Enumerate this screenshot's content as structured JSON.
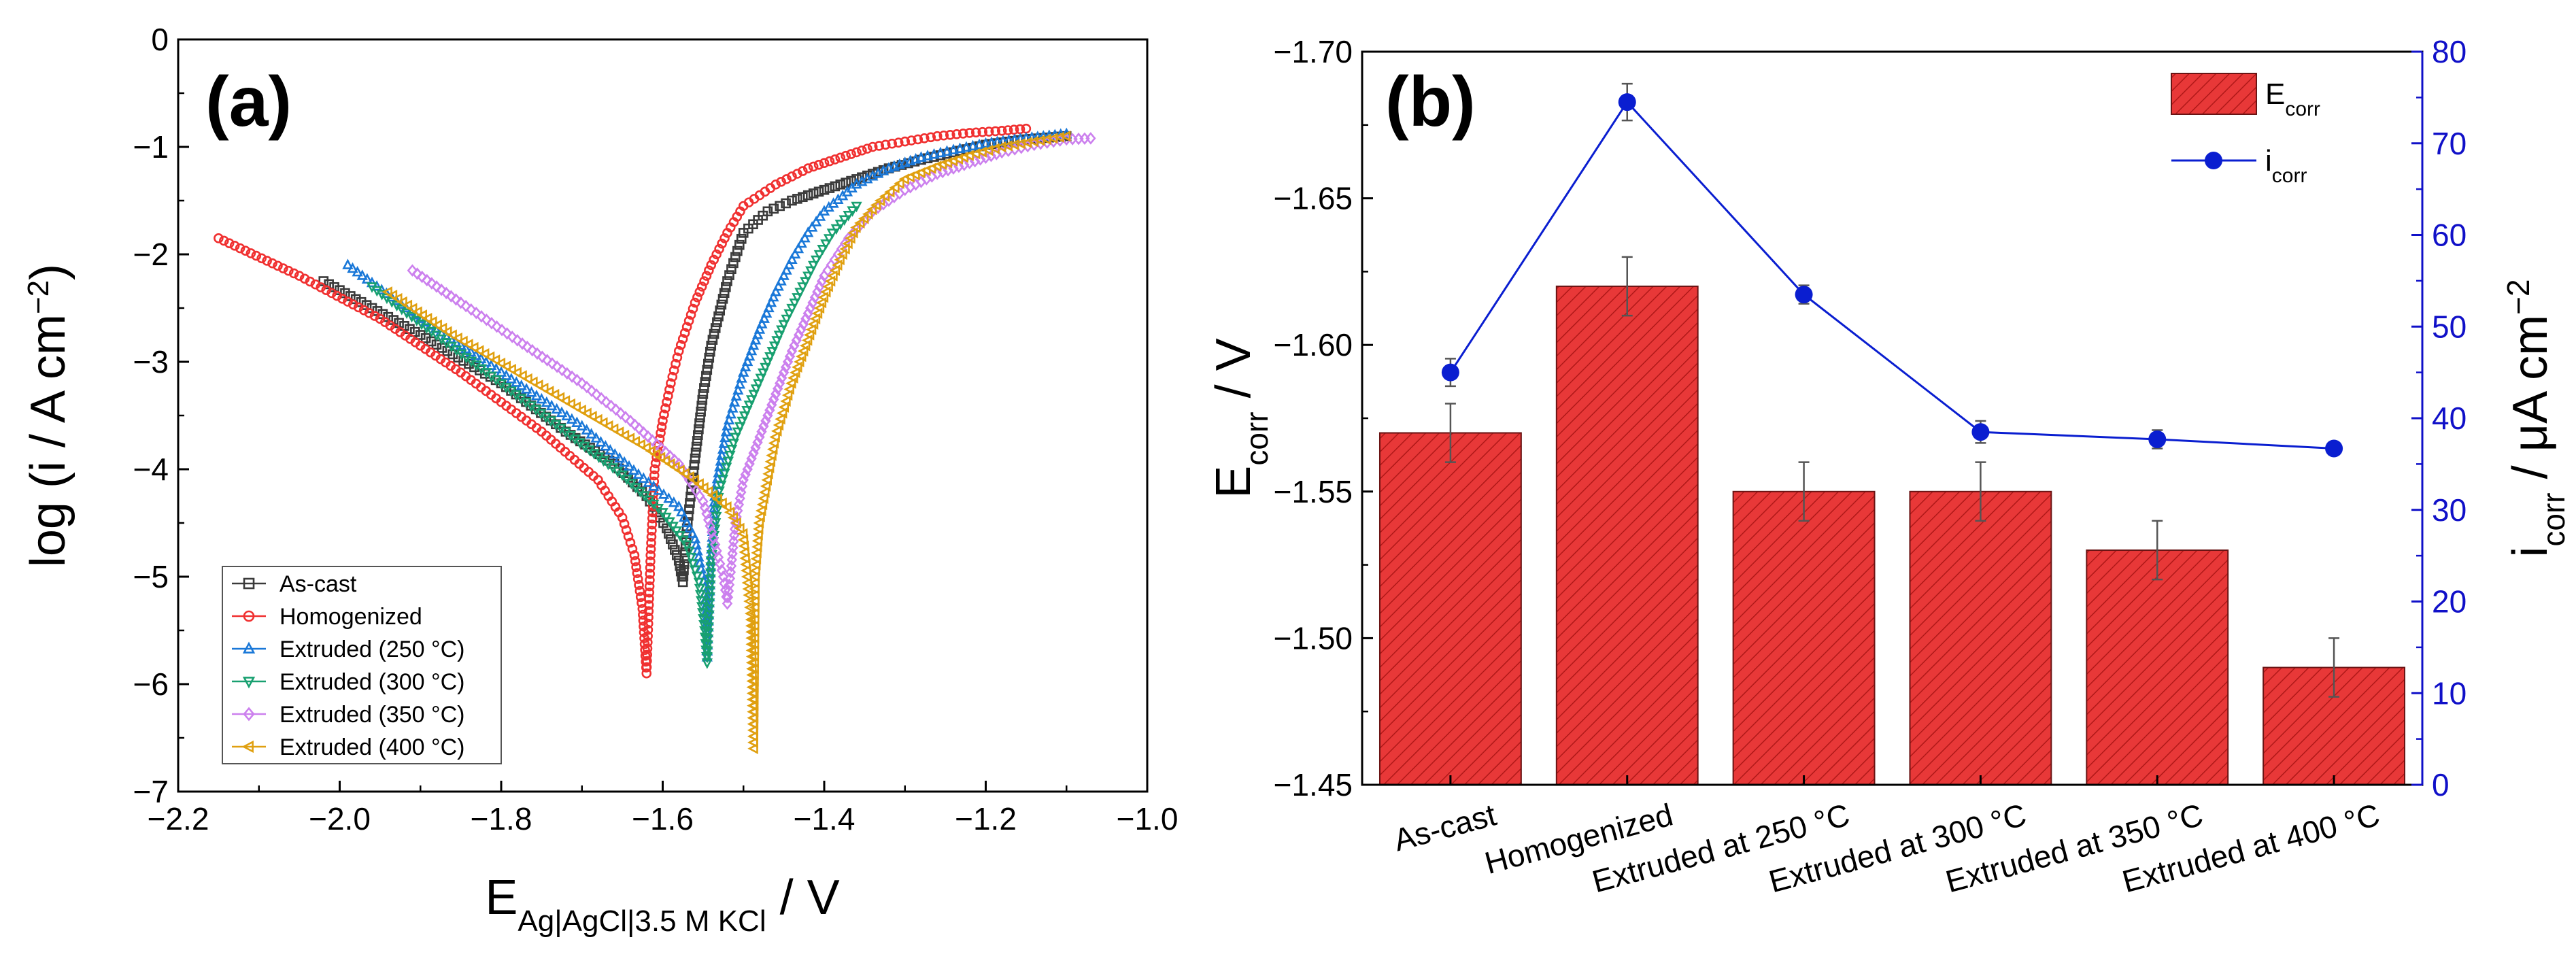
{
  "chart_data": [
    {
      "type": "line",
      "panel_label": "(a)",
      "title": "",
      "xlabel": {
        "main": "E",
        "sub": "Ag|AgCl|3.5 M KCl",
        "rest": " / V"
      },
      "ylabel": {
        "pre": "log (i / A cm",
        "sup": "−2",
        "post": ")"
      },
      "xlim": [
        -2.2,
        -1.0
      ],
      "ylim": [
        -7,
        0
      ],
      "xticks": [
        -2.2,
        -2.0,
        -1.8,
        -1.6,
        -1.4,
        -1.2,
        -1.0
      ],
      "xtick_labels": [
        "−2.2",
        "−2.0",
        "−1.8",
        "−1.6",
        "−1.4",
        "−1.2",
        "−1.0"
      ],
      "yticks": [
        0,
        -1,
        -2,
        -3,
        -4,
        -5,
        -6,
        -7
      ],
      "ytick_labels": [
        "0",
        "−1",
        "−2",
        "−3",
        "−4",
        "−5",
        "−6",
        "−7"
      ],
      "legend_position": "bottom-left",
      "series": [
        {
          "name": "As-cast",
          "color": "#3a3a3a",
          "marker": "square",
          "x": [
            -2.02,
            -1.9,
            -1.8,
            -1.72,
            -1.66,
            -1.62,
            -1.595,
            -1.58,
            -1.575,
            -1.57,
            -1.56,
            -1.55,
            -1.54,
            -1.52,
            -1.5,
            -1.47,
            -1.44,
            -1.4,
            -1.36,
            -1.32,
            -1.28,
            -1.24,
            -1.2,
            -1.15,
            -1.1
          ],
          "y": [
            -2.25,
            -2.75,
            -3.2,
            -3.65,
            -3.95,
            -4.25,
            -4.55,
            -4.85,
            -5.05,
            -4.55,
            -3.9,
            -3.3,
            -2.85,
            -2.25,
            -1.8,
            -1.6,
            -1.5,
            -1.4,
            -1.3,
            -1.2,
            -1.12,
            -1.05,
            -0.98,
            -0.93,
            -0.9
          ]
        },
        {
          "name": "Homogenized",
          "color": "#f03030",
          "marker": "circle",
          "x": [
            -2.15,
            -2.05,
            -1.95,
            -1.85,
            -1.75,
            -1.68,
            -1.65,
            -1.635,
            -1.625,
            -1.62,
            -1.615,
            -1.61,
            -1.6,
            -1.59,
            -1.58,
            -1.56,
            -1.54,
            -1.52,
            -1.5,
            -1.46,
            -1.42,
            -1.38,
            -1.34,
            -1.3,
            -1.26,
            -1.22,
            -1.18,
            -1.15
          ],
          "y": [
            -1.85,
            -2.2,
            -2.6,
            -3.1,
            -3.65,
            -4.1,
            -4.45,
            -4.8,
            -5.3,
            -5.9,
            -4.8,
            -4.0,
            -3.55,
            -3.2,
            -2.9,
            -2.45,
            -2.1,
            -1.8,
            -1.55,
            -1.35,
            -1.2,
            -1.1,
            -1.0,
            -0.95,
            -0.9,
            -0.87,
            -0.85,
            -0.83
          ]
        },
        {
          "name": "Extruded (250 °C)",
          "color": "#1a78d8",
          "marker": "triangle-up",
          "x": [
            -1.99,
            -1.9,
            -1.8,
            -1.7,
            -1.63,
            -1.58,
            -1.56,
            -1.548,
            -1.545,
            -1.54,
            -1.535,
            -1.52,
            -1.5,
            -1.48,
            -1.46,
            -1.44,
            -1.42,
            -1.4,
            -1.36,
            -1.32,
            -1.28,
            -1.24,
            -1.2,
            -1.15,
            -1.1
          ],
          "y": [
            -2.1,
            -2.6,
            -3.1,
            -3.6,
            -4.05,
            -4.35,
            -4.65,
            -5.1,
            -5.75,
            -4.8,
            -4.2,
            -3.6,
            -3.1,
            -2.7,
            -2.35,
            -2.05,
            -1.8,
            -1.6,
            -1.35,
            -1.2,
            -1.1,
            -1.03,
            -0.97,
            -0.92,
            -0.88
          ]
        },
        {
          "name": "Extruded (300 °C)",
          "color": "#18a070",
          "marker": "triangle-down",
          "x": [
            -1.96,
            -1.88,
            -1.8,
            -1.72,
            -1.65,
            -1.6,
            -1.57,
            -1.555,
            -1.548,
            -1.545,
            -1.54,
            -1.53,
            -1.51,
            -1.49,
            -1.47,
            -1.45,
            -1.43,
            -1.41,
            -1.39,
            -1.36
          ],
          "y": [
            -2.3,
            -2.75,
            -3.2,
            -3.65,
            -4.05,
            -4.4,
            -4.7,
            -5.05,
            -5.5,
            -5.8,
            -4.85,
            -4.2,
            -3.7,
            -3.35,
            -3.0,
            -2.65,
            -2.35,
            -2.05,
            -1.8,
            -1.55
          ]
        },
        {
          "name": "Extruded (350 °C)",
          "color": "#cc80ee",
          "marker": "diamond",
          "x": [
            -1.91,
            -1.85,
            -1.78,
            -1.7,
            -1.64,
            -1.58,
            -1.55,
            -1.535,
            -1.525,
            -1.52,
            -1.515,
            -1.51,
            -1.5,
            -1.48,
            -1.46,
            -1.44,
            -1.42,
            -1.4,
            -1.37,
            -1.34,
            -1.3,
            -1.26,
            -1.22,
            -1.18,
            -1.14,
            -1.1,
            -1.07
          ],
          "y": [
            -2.15,
            -2.45,
            -2.8,
            -3.2,
            -3.55,
            -3.95,
            -4.3,
            -4.7,
            -5.0,
            -5.25,
            -4.9,
            -4.5,
            -4.1,
            -3.7,
            -3.3,
            -2.9,
            -2.55,
            -2.2,
            -1.85,
            -1.6,
            -1.4,
            -1.25,
            -1.15,
            -1.05,
            -0.98,
            -0.93,
            -0.92
          ]
        },
        {
          "name": "Extruded (400 °C)",
          "color": "#e0a010",
          "marker": "triangle-left",
          "x": [
            -1.94,
            -1.86,
            -1.78,
            -1.7,
            -1.62,
            -1.56,
            -1.52,
            -1.5,
            -1.49,
            -1.487,
            -1.485,
            -1.48,
            -1.47,
            -1.46,
            -1.44,
            -1.42,
            -1.4,
            -1.38,
            -1.36,
            -1.33,
            -1.3,
            -1.26,
            -1.22,
            -1.18,
            -1.14,
            -1.1
          ],
          "y": [
            -2.35,
            -2.75,
            -3.1,
            -3.45,
            -3.8,
            -4.1,
            -4.35,
            -4.6,
            -5.4,
            -6.6,
            -5.0,
            -4.5,
            -4.1,
            -3.7,
            -3.2,
            -2.8,
            -2.4,
            -2.05,
            -1.75,
            -1.5,
            -1.3,
            -1.18,
            -1.08,
            -1.0,
            -0.95,
            -0.9
          ]
        }
      ]
    },
    {
      "type": "bar",
      "panel_label": "(b)",
      "title": "",
      "xlabel": "",
      "categories": [
        "As-cast",
        "Homogenized",
        "Extruded at 250 °C",
        "Extruded at 300 °C",
        "Extruded at 350 °C",
        "Extruded at 400 °C"
      ],
      "ylabel_left": {
        "main": "E",
        "sub": "corr",
        "rest": " / V"
      },
      "ylabel_right": {
        "main": "i",
        "sub": "corr",
        "rest": " / μA cm",
        "sup": "−2"
      },
      "ylim_left": [
        -1.45,
        -1.7
      ],
      "yticks_left": [
        -1.45,
        -1.5,
        -1.55,
        -1.6,
        -1.65,
        -1.7
      ],
      "ytick_labels_left": [
        "−1.45",
        "−1.50",
        "−1.55",
        "−1.60",
        "−1.65",
        "−1.70"
      ],
      "ylim_right": [
        0,
        80
      ],
      "yticks_right": [
        0,
        10,
        20,
        30,
        40,
        50,
        60,
        70,
        80
      ],
      "ytick_labels_right": [
        "0",
        "10",
        "20",
        "30",
        "40",
        "50",
        "60",
        "70",
        "80"
      ],
      "legend_position": "top-right",
      "colors": {
        "bar": "#e83838",
        "line": "#0a1ed0",
        "left_axis_label": "#e83838",
        "right_axis": "#1010c8"
      },
      "series": [
        {
          "name": "Ecorr",
          "legend": {
            "main": "E",
            "sub": "corr"
          },
          "kind": "bar",
          "values": [
            -1.57,
            -1.62,
            -1.55,
            -1.55,
            -1.53,
            -1.49
          ],
          "errors": [
            0.01,
            0.01,
            0.01,
            0.01,
            0.01,
            0.01
          ]
        },
        {
          "name": "icorr",
          "legend": {
            "main": "i",
            "sub": "corr"
          },
          "kind": "line",
          "values": [
            45.0,
            74.5,
            53.5,
            38.5,
            37.7,
            36.7
          ],
          "errors": [
            1.5,
            2.0,
            1.0,
            1.2,
            1.0,
            0.7
          ]
        }
      ]
    }
  ]
}
